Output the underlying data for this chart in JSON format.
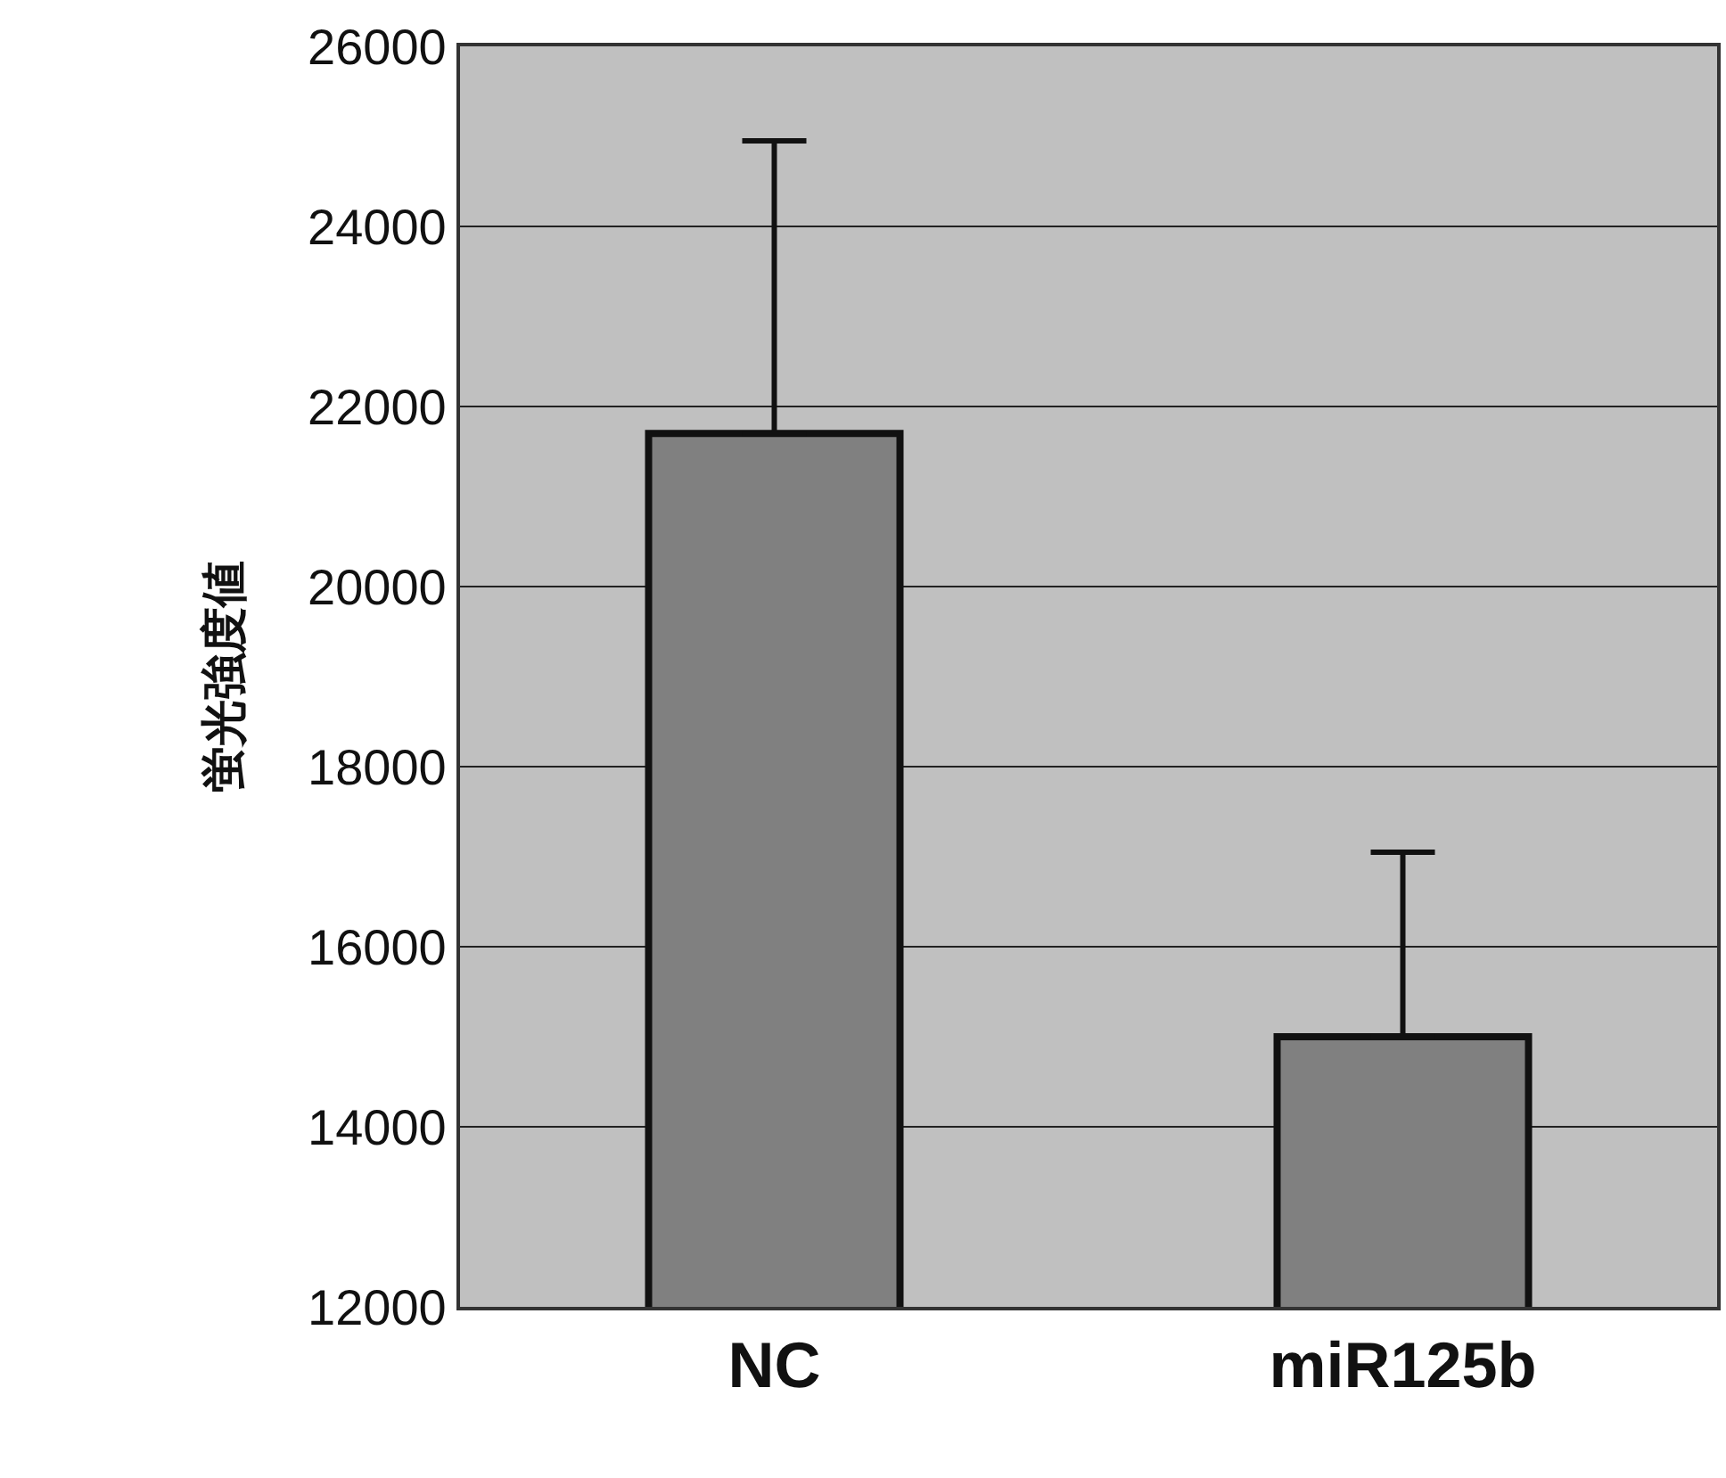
{
  "chart_data": {
    "type": "bar",
    "ylabel": "蛍光強度値",
    "categories": [
      "NC",
      "miR125b"
    ],
    "values": [
      21700,
      15000
    ],
    "color": "#808080",
    "errors": [
      [
        21700,
        24950
      ],
      [
        15000,
        17050
      ]
    ],
    "ylim": [
      12000,
      26000
    ],
    "yticks": [
      12000,
      14000,
      16000,
      18000,
      20000,
      22000,
      24000,
      26000
    ],
    "grid": "y"
  }
}
